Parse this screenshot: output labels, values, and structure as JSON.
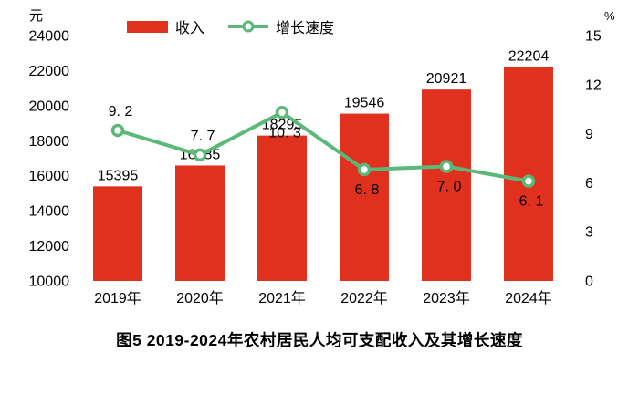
{
  "figure": {
    "caption": "图5  2019-2024年农村居民人均可支配收入及其增长速度"
  },
  "legend": {
    "bar_label": "收入",
    "line_label": "增长速度"
  },
  "colors": {
    "bar": "#e0301e",
    "line": "#5bb878",
    "marker_fill": "#ffffff",
    "text": "#000000"
  },
  "chart_data": {
    "type": "bar",
    "subtype": "bar-line-combo",
    "title": "图5  2019-2024年农村居民人均可支配收入及其增长速度",
    "categories": [
      "2019年",
      "2020年",
      "2021年",
      "2022年",
      "2023年",
      "2024年"
    ],
    "series": [
      {
        "name": "收入",
        "type": "bar",
        "axis": "left",
        "values": [
          15395,
          16585,
          18295,
          19546,
          20921,
          22204
        ],
        "color": "#e0301e"
      },
      {
        "name": "增长速度",
        "type": "line",
        "axis": "right",
        "values": [
          9.2,
          7.7,
          10.3,
          6.8,
          7.0,
          6.1
        ],
        "value_labels": [
          "9. 2",
          "7. 7",
          "10. 3",
          "6. 8",
          "7. 0",
          "6. 1"
        ],
        "label_positions": [
          "above",
          "above",
          "below",
          "below",
          "below",
          "below"
        ],
        "color": "#5bb878"
      }
    ],
    "left_axis": {
      "unit": "元",
      "min": 10000,
      "max": 24000,
      "step": 2000,
      "ticks": [
        "24000",
        "22000",
        "20000",
        "18000",
        "16000",
        "14000",
        "12000",
        "10000"
      ]
    },
    "right_axis": {
      "unit": "%",
      "min": 0,
      "max": 15,
      "step": 3,
      "ticks": [
        "15",
        "12",
        "9",
        "6",
        "3",
        "0"
      ]
    },
    "grid": false,
    "axis_lines": false,
    "legend_position": "top"
  }
}
